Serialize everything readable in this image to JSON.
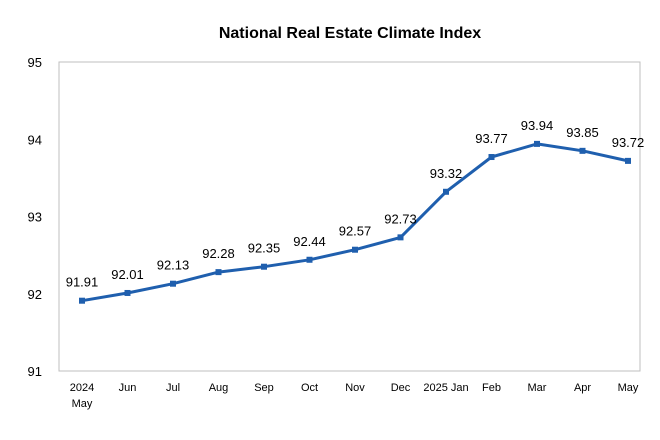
{
  "chart_data": {
    "type": "line",
    "title": "National Real Estate Climate Index",
    "categories": [
      "2024\nMay",
      "Jun",
      "Jul",
      "Aug",
      "Sep",
      "Oct",
      "Nov",
      "Dec",
      "2025 Jan",
      "Feb",
      "Mar",
      "Apr",
      "May"
    ],
    "series": [
      {
        "values": [
          91.91,
          92.01,
          92.13,
          92.28,
          92.35,
          92.44,
          92.57,
          92.73,
          93.32,
          93.77,
          93.94,
          93.85,
          93.72
        ],
        "labels": [
          "91.91",
          "92.01",
          "92.13",
          "92.28",
          "92.35",
          "92.44",
          "92.57",
          "92.73",
          "93.32",
          "93.77",
          "93.94",
          "93.85",
          "93.72"
        ],
        "color": "#1f5fae"
      }
    ],
    "ylim": [
      91,
      95
    ],
    "yticks": [
      "91",
      "92",
      "93",
      "94",
      "95"
    ],
    "grid": false,
    "legend": "none"
  }
}
